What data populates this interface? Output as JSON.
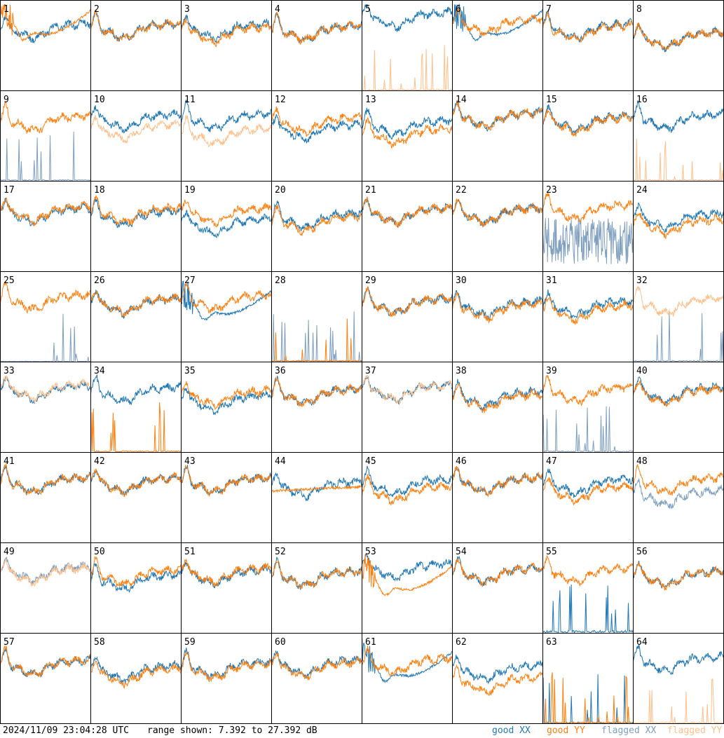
{
  "footer": {
    "timestamp": "2024/11/09 23:04:28 UTC",
    "range_text": "range shown: 7.392 to 27.392 dB"
  },
  "legend": [
    {
      "label": "good XX",
      "color": "#1f77b4"
    },
    {
      "label": "good YY",
      "color": "#ff7f0e"
    },
    {
      "label": "flagged XX",
      "color": "#7f9fbf"
    },
    {
      "label": "flagged YY",
      "color": "#ffbf8a"
    }
  ],
  "chart_data": {
    "type": "line",
    "grid": {
      "rows": 8,
      "cols": 8
    },
    "ylim": [
      7.392,
      27.392
    ],
    "yunit": "dB",
    "series_styles": {
      "good XX": "#1f77b4",
      "good YY": "#ff7f0e",
      "flagged XX": "#7f9fbf",
      "flagged YY": "#ffbf8a"
    },
    "panels": [
      {
        "label": "1",
        "xx": {
          "status": "good",
          "shape": "normal",
          "level": 0.72
        },
        "yy": {
          "status": "good",
          "shape": "deep-dip",
          "level": 0.55
        }
      },
      {
        "label": "2",
        "xx": {
          "status": "good",
          "shape": "normal",
          "level": 0.72
        },
        "yy": {
          "status": "good",
          "shape": "normal",
          "level": 0.72
        }
      },
      {
        "label": "3",
        "xx": {
          "status": "good",
          "shape": "normal",
          "level": 0.72
        },
        "yy": {
          "status": "good",
          "shape": "normal",
          "level": 0.68
        }
      },
      {
        "label": "4",
        "xx": {
          "status": "good",
          "shape": "normal",
          "level": 0.7
        },
        "yy": {
          "status": "good",
          "shape": "normal",
          "level": 0.7
        }
      },
      {
        "label": "5",
        "xx": {
          "status": "good",
          "shape": "normal",
          "level": 0.85
        },
        "yy": {
          "status": "flagged",
          "shape": "spiky",
          "level": 0.05
        }
      },
      {
        "label": "6",
        "xx": {
          "status": "good",
          "shape": "deep-dip",
          "level": 0.55
        },
        "yy": {
          "status": "good",
          "shape": "normal",
          "level": 0.78
        }
      },
      {
        "label": "7",
        "xx": {
          "status": "good",
          "shape": "normal",
          "level": 0.72
        },
        "yy": {
          "status": "good",
          "shape": "normal",
          "level": 0.7
        }
      },
      {
        "label": "8",
        "xx": {
          "status": "good",
          "shape": "normal",
          "level": 0.62
        },
        "yy": {
          "status": "good",
          "shape": "normal",
          "level": 0.62
        }
      },
      {
        "label": "9",
        "xx": {
          "status": "flagged",
          "shape": "spiky",
          "level": 0.05
        },
        "yy": {
          "status": "good",
          "shape": "normal",
          "level": 0.7
        }
      },
      {
        "label": "10",
        "xx": {
          "status": "good",
          "shape": "normal",
          "level": 0.72
        },
        "yy": {
          "status": "flagged",
          "shape": "normal",
          "level": 0.6
        }
      },
      {
        "label": "11",
        "xx": {
          "status": "good",
          "shape": "normal",
          "level": 0.72
        },
        "yy": {
          "status": "flagged",
          "shape": "normal",
          "level": 0.55
        }
      },
      {
        "label": "12",
        "xx": {
          "status": "good",
          "shape": "normal",
          "level": 0.6
        },
        "yy": {
          "status": "good",
          "shape": "normal",
          "level": 0.68
        }
      },
      {
        "label": "13",
        "xx": {
          "status": "good",
          "shape": "normal",
          "level": 0.65
        },
        "yy": {
          "status": "good",
          "shape": "normal",
          "level": 0.55
        }
      },
      {
        "label": "14",
        "xx": {
          "status": "good",
          "shape": "normal",
          "level": 0.74
        },
        "yy": {
          "status": "good",
          "shape": "normal",
          "level": 0.74
        }
      },
      {
        "label": "15",
        "xx": {
          "status": "good",
          "shape": "normal",
          "level": 0.7
        },
        "yy": {
          "status": "good",
          "shape": "normal",
          "level": 0.68
        }
      },
      {
        "label": "16",
        "xx": {
          "status": "good",
          "shape": "normal",
          "level": 0.72
        },
        "yy": {
          "status": "flagged",
          "shape": "spiky",
          "level": 0.05
        }
      },
      {
        "label": "17",
        "xx": {
          "status": "good",
          "shape": "normal",
          "level": 0.68
        },
        "yy": {
          "status": "good",
          "shape": "normal",
          "level": 0.7
        }
      },
      {
        "label": "18",
        "xx": {
          "status": "good",
          "shape": "normal",
          "level": 0.65
        },
        "yy": {
          "status": "good",
          "shape": "normal",
          "level": 0.68
        }
      },
      {
        "label": "19",
        "xx": {
          "status": "good",
          "shape": "normal",
          "level": 0.55
        },
        "yy": {
          "status": "good",
          "shape": "normal",
          "level": 0.68
        }
      },
      {
        "label": "20",
        "xx": {
          "status": "good",
          "shape": "normal",
          "level": 0.62
        },
        "yy": {
          "status": "good",
          "shape": "normal",
          "level": 0.58
        }
      },
      {
        "label": "21",
        "xx": {
          "status": "good",
          "shape": "normal",
          "level": 0.68
        },
        "yy": {
          "status": "good",
          "shape": "normal",
          "level": 0.68
        }
      },
      {
        "label": "22",
        "xx": {
          "status": "good",
          "shape": "normal",
          "level": 0.68
        },
        "yy": {
          "status": "good",
          "shape": "normal",
          "level": 0.68
        }
      },
      {
        "label": "23",
        "xx": {
          "status": "flagged",
          "shape": "noisy-low",
          "level": 0.35
        },
        "yy": {
          "status": "good",
          "shape": "normal",
          "level": 0.72
        }
      },
      {
        "label": "24",
        "xx": {
          "status": "good",
          "shape": "normal",
          "level": 0.62
        },
        "yy": {
          "status": "good",
          "shape": "normal",
          "level": 0.55
        }
      },
      {
        "label": "25",
        "xx": {
          "status": "flagged",
          "shape": "spiky",
          "level": 0.02
        },
        "yy": {
          "status": "good",
          "shape": "normal",
          "level": 0.72
        }
      },
      {
        "label": "26",
        "xx": {
          "status": "good",
          "shape": "normal",
          "level": 0.68
        },
        "yy": {
          "status": "good",
          "shape": "normal",
          "level": 0.68
        }
      },
      {
        "label": "27",
        "xx": {
          "status": "good",
          "shape": "deep-dip",
          "level": 0.45
        },
        "yy": {
          "status": "good",
          "shape": "normal",
          "level": 0.72
        }
      },
      {
        "label": "28",
        "xx": {
          "status": "flagged",
          "shape": "spiky",
          "level": 0.05
        },
        "yy": {
          "status": "good",
          "shape": "spiky",
          "level": 0.05
        }
      },
      {
        "label": "29",
        "xx": {
          "status": "good",
          "shape": "normal",
          "level": 0.68
        },
        "yy": {
          "status": "good",
          "shape": "normal",
          "level": 0.68
        }
      },
      {
        "label": "30",
        "xx": {
          "status": "good",
          "shape": "normal",
          "level": 0.65
        },
        "yy": {
          "status": "good",
          "shape": "normal",
          "level": 0.62
        }
      },
      {
        "label": "31",
        "xx": {
          "status": "good",
          "shape": "normal",
          "level": 0.65
        },
        "yy": {
          "status": "good",
          "shape": "normal",
          "level": 0.6
        }
      },
      {
        "label": "32",
        "xx": {
          "status": "flagged",
          "shape": "spiky",
          "level": 0.05
        },
        "yy": {
          "status": "flagged",
          "shape": "normal",
          "level": 0.68
        }
      },
      {
        "label": "33",
        "xx": {
          "status": "good",
          "shape": "normal",
          "level": 0.72
        },
        "yy": {
          "status": "flagged",
          "shape": "normal",
          "level": 0.74
        }
      },
      {
        "label": "34",
        "xx": {
          "status": "good",
          "shape": "normal",
          "level": 0.7
        },
        "yy": {
          "status": "good",
          "shape": "spiky",
          "level": 0.05
        }
      },
      {
        "label": "35",
        "xx": {
          "status": "good",
          "shape": "normal",
          "level": 0.6
        },
        "yy": {
          "status": "good",
          "shape": "normal",
          "level": 0.66
        }
      },
      {
        "label": "36",
        "xx": {
          "status": "good",
          "shape": "normal",
          "level": 0.68
        },
        "yy": {
          "status": "good",
          "shape": "normal",
          "level": 0.68
        }
      },
      {
        "label": "37",
        "xx": {
          "status": "good",
          "shape": "normal",
          "level": 0.72
        },
        "yy": {
          "status": "flagged",
          "shape": "normal",
          "level": 0.72
        }
      },
      {
        "label": "38",
        "xx": {
          "status": "good",
          "shape": "normal",
          "level": 0.65
        },
        "yy": {
          "status": "good",
          "shape": "normal",
          "level": 0.62
        }
      },
      {
        "label": "39",
        "xx": {
          "status": "flagged",
          "shape": "spiky",
          "level": 0.05
        },
        "yy": {
          "status": "good",
          "shape": "normal",
          "level": 0.7
        }
      },
      {
        "label": "40",
        "xx": {
          "status": "good",
          "shape": "normal",
          "level": 0.7
        },
        "yy": {
          "status": "good",
          "shape": "normal",
          "level": 0.68
        }
      },
      {
        "label": "41",
        "xx": {
          "status": "good",
          "shape": "normal",
          "level": 0.7
        },
        "yy": {
          "status": "good",
          "shape": "normal",
          "level": 0.7
        }
      },
      {
        "label": "42",
        "xx": {
          "status": "good",
          "shape": "normal",
          "level": 0.7
        },
        "yy": {
          "status": "good",
          "shape": "normal",
          "level": 0.7
        }
      },
      {
        "label": "43",
        "xx": {
          "status": "good",
          "shape": "normal",
          "level": 0.7
        },
        "yy": {
          "status": "good",
          "shape": "normal",
          "level": 0.7
        }
      },
      {
        "label": "44",
        "xx": {
          "status": "good",
          "shape": "normal",
          "level": 0.65
        },
        "yy": {
          "status": "good",
          "shape": "flat",
          "level": 0.6
        }
      },
      {
        "label": "45",
        "xx": {
          "status": "good",
          "shape": "normal",
          "level": 0.68
        },
        "yy": {
          "status": "good",
          "shape": "normal",
          "level": 0.6
        }
      },
      {
        "label": "46",
        "xx": {
          "status": "good",
          "shape": "normal",
          "level": 0.7
        },
        "yy": {
          "status": "good",
          "shape": "normal",
          "level": 0.7
        }
      },
      {
        "label": "47",
        "xx": {
          "status": "good",
          "shape": "normal",
          "level": 0.68
        },
        "yy": {
          "status": "good",
          "shape": "normal",
          "level": 0.6
        }
      },
      {
        "label": "48",
        "xx": {
          "status": "flagged",
          "shape": "normal",
          "level": 0.55
        },
        "yy": {
          "status": "good",
          "shape": "normal",
          "level": 0.7
        }
      },
      {
        "label": "49",
        "xx": {
          "status": "flagged",
          "shape": "normal",
          "level": 0.72
        },
        "yy": {
          "status": "flagged",
          "shape": "normal",
          "level": 0.7
        }
      },
      {
        "label": "50",
        "xx": {
          "status": "good",
          "shape": "normal",
          "level": 0.62
        },
        "yy": {
          "status": "good",
          "shape": "normal",
          "level": 0.68
        }
      },
      {
        "label": "51",
        "xx": {
          "status": "good",
          "shape": "normal",
          "level": 0.68
        },
        "yy": {
          "status": "good",
          "shape": "normal",
          "level": 0.7
        }
      },
      {
        "label": "52",
        "xx": {
          "status": "good",
          "shape": "normal",
          "level": 0.66
        },
        "yy": {
          "status": "good",
          "shape": "normal",
          "level": 0.66
        }
      },
      {
        "label": "53",
        "xx": {
          "status": "good",
          "shape": "normal",
          "level": 0.75
        },
        "yy": {
          "status": "good",
          "shape": "deep-dip",
          "level": 0.4
        }
      },
      {
        "label": "54",
        "xx": {
          "status": "good",
          "shape": "normal",
          "level": 0.7
        },
        "yy": {
          "status": "good",
          "shape": "normal",
          "level": 0.7
        }
      },
      {
        "label": "55",
        "xx": {
          "status": "good",
          "shape": "spiky",
          "level": 0.1
        },
        "yy": {
          "status": "good",
          "shape": "normal",
          "level": 0.7
        }
      },
      {
        "label": "56",
        "xx": {
          "status": "good",
          "shape": "normal",
          "level": 0.66
        },
        "yy": {
          "status": "good",
          "shape": "normal",
          "level": 0.66
        }
      },
      {
        "label": "57",
        "xx": {
          "status": "good",
          "shape": "normal",
          "level": 0.68
        },
        "yy": {
          "status": "good",
          "shape": "normal",
          "level": 0.68
        }
      },
      {
        "label": "58",
        "xx": {
          "status": "good",
          "shape": "normal",
          "level": 0.62
        },
        "yy": {
          "status": "good",
          "shape": "normal",
          "level": 0.58
        }
      },
      {
        "label": "59",
        "xx": {
          "status": "good",
          "shape": "normal",
          "level": 0.66
        },
        "yy": {
          "status": "good",
          "shape": "normal",
          "level": 0.64
        }
      },
      {
        "label": "60",
        "xx": {
          "status": "good",
          "shape": "normal",
          "level": 0.68
        },
        "yy": {
          "status": "good",
          "shape": "normal",
          "level": 0.66
        }
      },
      {
        "label": "61",
        "xx": {
          "status": "good",
          "shape": "deep-dip",
          "level": 0.45
        },
        "yy": {
          "status": "good",
          "shape": "normal",
          "level": 0.7
        }
      },
      {
        "label": "62",
        "xx": {
          "status": "good",
          "shape": "normal",
          "level": 0.62
        },
        "yy": {
          "status": "good",
          "shape": "normal",
          "level": 0.48
        }
      },
      {
        "label": "63",
        "xx": {
          "status": "good",
          "shape": "spiky",
          "level": 0.05
        },
        "yy": {
          "status": "good",
          "shape": "spiky",
          "level": 0.05
        }
      },
      {
        "label": "64",
        "xx": {
          "status": "good",
          "shape": "normal",
          "level": 0.72
        },
        "yy": {
          "status": "flagged",
          "shape": "spiky",
          "level": 0.05
        }
      }
    ]
  }
}
